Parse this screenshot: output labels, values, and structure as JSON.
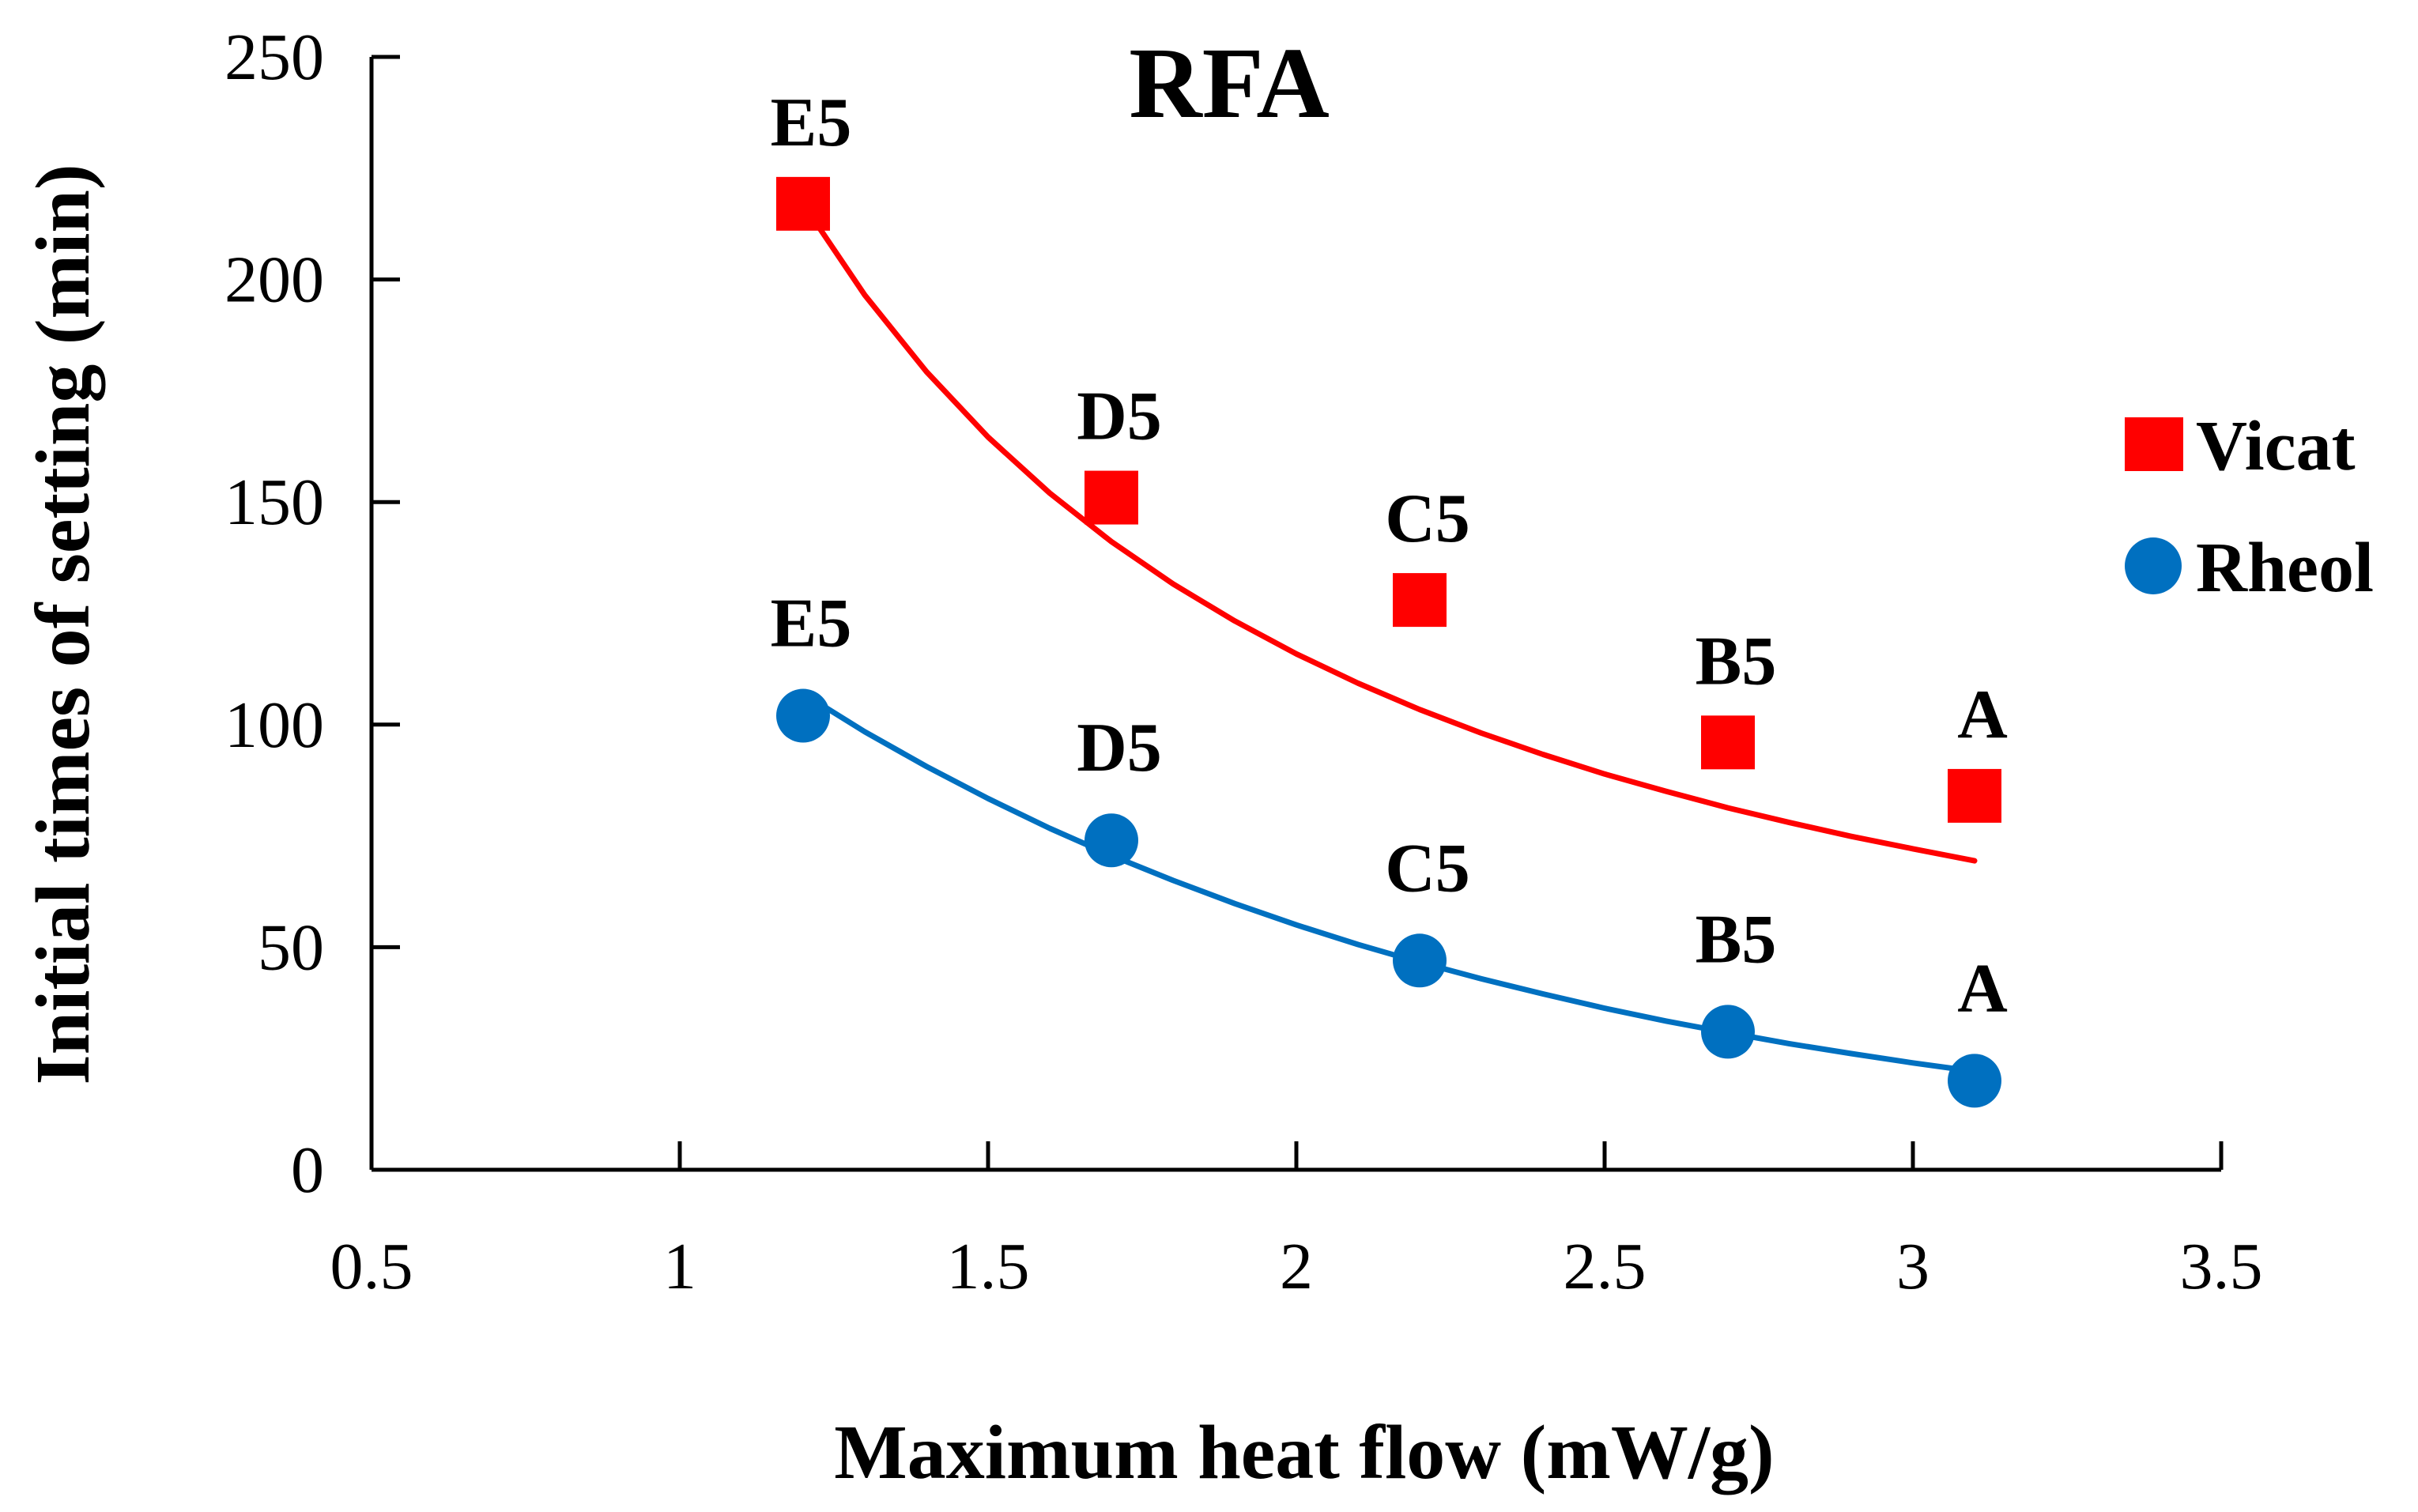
{
  "chart_data": {
    "type": "scatter",
    "title": "RFA",
    "xlabel": "Maximum heat flow (mW/g)",
    "ylabel": "Initial times of setting (min)",
    "xlim": [
      0.5,
      3.5
    ],
    "ylim": [
      0,
      250
    ],
    "xticks": [
      0.5,
      1,
      1.5,
      2,
      2.5,
      3,
      3.5
    ],
    "yticks": [
      0,
      50,
      100,
      150,
      200,
      250
    ],
    "xtick_labels": [
      "0.5",
      "1",
      "1.5",
      "2",
      "2.5",
      "3",
      "3.5"
    ],
    "ytick_labels": [
      "0",
      "50",
      "100",
      "150",
      "200",
      "250"
    ],
    "grid": false,
    "legend_position": "right",
    "series": [
      {
        "name": "Vicat",
        "marker": "square",
        "color": "#ff0000",
        "x": [
          1.2,
          1.7,
          2.2,
          2.7,
          3.1
        ],
        "y": [
          217,
          151,
          128,
          96,
          84
        ],
        "point_labels": [
          "E5",
          "D5",
          "C5",
          "B5",
          "A"
        ],
        "trendline": "power",
        "trend_x": [
          1.2,
          1.3,
          1.4,
          1.5,
          1.6,
          1.7,
          1.8,
          1.9,
          2.0,
          2.1,
          2.2,
          2.3,
          2.4,
          2.5,
          2.6,
          2.7,
          2.8,
          2.9,
          3.0,
          3.1
        ],
        "trend_y": [
          217,
          196.5,
          179.3,
          164.6,
          152.0,
          141.1,
          131.6,
          123.3,
          115.9,
          109.3,
          103.4,
          98.1,
          93.3,
          88.9,
          85.0,
          81.3,
          78.0,
          74.9,
          72.1,
          69.4
        ]
      },
      {
        "name": "Rheol",
        "marker": "circle",
        "color": "#0070c0",
        "x": [
          1.2,
          1.7,
          2.2,
          2.7,
          3.1
        ],
        "y": [
          102,
          74,
          47,
          31,
          20
        ],
        "point_labels": [
          "E5",
          "D5",
          "C5",
          "B5",
          "A"
        ],
        "trendline": "exponential",
        "trend_x": [
          1.2,
          1.3,
          1.4,
          1.5,
          1.6,
          1.7,
          1.8,
          1.9,
          2.0,
          2.1,
          2.2,
          2.3,
          2.4,
          2.5,
          2.6,
          2.7,
          2.8,
          2.9,
          3.0,
          3.1
        ],
        "trend_y": [
          107,
          98.4,
          90.6,
          83.4,
          76.7,
          70.6,
          65.0,
          59.8,
          55.0,
          50.6,
          46.6,
          42.9,
          39.5,
          36.3,
          33.4,
          30.8,
          28.3,
          26.1,
          24.0,
          22.1
        ]
      }
    ]
  }
}
